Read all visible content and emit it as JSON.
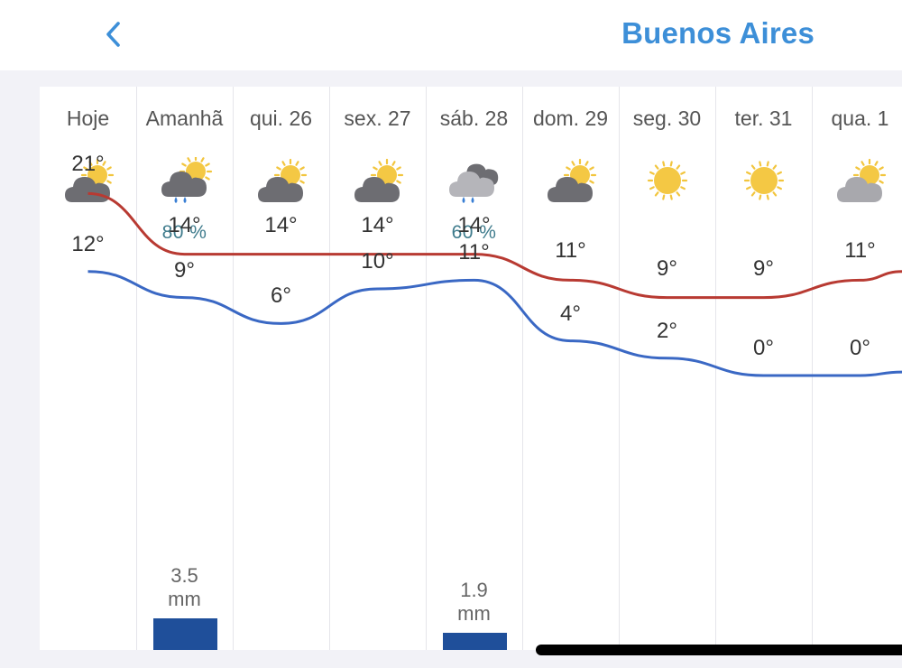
{
  "nav": {
    "back_icon": "chevron-left-icon",
    "title": "Buenos Aires"
  },
  "colors": {
    "accent": "#3d8fd8",
    "high_line": "#b83a32",
    "low_line": "#3a68c4",
    "rain_bar": "#1f4f9a",
    "precip_text": "#3e7b8c"
  },
  "days": [
    {
      "label": "Hoje",
      "icon": "partly-cloudy-icon",
      "precip_chance": "",
      "high": 21,
      "high_label": "21°",
      "low": 12,
      "low_label": "12°",
      "rain_value": "",
      "rain_unit": "",
      "rain_mm": 0
    },
    {
      "label": "Amanhã",
      "icon": "cloud-sun-rain-icon",
      "precip_chance": "80 %",
      "high": 14,
      "high_label": "14°",
      "low": 9,
      "low_label": "9°",
      "rain_value": "3.5",
      "rain_unit": "mm",
      "rain_mm": 3.5
    },
    {
      "label": "qui. 26",
      "icon": "partly-cloudy-icon",
      "precip_chance": "",
      "high": 14,
      "high_label": "14°",
      "low": 6,
      "low_label": "6°",
      "rain_value": "",
      "rain_unit": "",
      "rain_mm": 0
    },
    {
      "label": "sex. 27",
      "icon": "partly-cloudy-icon",
      "precip_chance": "",
      "high": 14,
      "high_label": "14°",
      "low": 10,
      "low_label": "10°",
      "rain_value": "",
      "rain_unit": "",
      "rain_mm": 0
    },
    {
      "label": "sáb. 28",
      "icon": "cloudy-rain-icon",
      "precip_chance": "60 %",
      "high": 14,
      "high_label": "14°",
      "low": 11,
      "low_label": "11°",
      "rain_value": "1.9",
      "rain_unit": "mm",
      "rain_mm": 1.9
    },
    {
      "label": "dom. 29",
      "icon": "partly-cloudy-icon",
      "precip_chance": "",
      "high": 11,
      "high_label": "11°",
      "low": 4,
      "low_label": "4°",
      "rain_value": "",
      "rain_unit": "",
      "rain_mm": 0
    },
    {
      "label": "seg. 30",
      "icon": "sun-icon",
      "precip_chance": "",
      "high": 9,
      "high_label": "9°",
      "low": 2,
      "low_label": "2°",
      "rain_value": "",
      "rain_unit": "",
      "rain_mm": 0
    },
    {
      "label": "ter. 31",
      "icon": "sun-icon",
      "precip_chance": "",
      "high": 9,
      "high_label": "9°",
      "low": 0,
      "low_label": "0°",
      "rain_value": "",
      "rain_unit": "",
      "rain_mm": 0
    },
    {
      "label": "qua. 1",
      "icon": "partly-cloudy-light-icon",
      "precip_chance": "",
      "high": 11,
      "high_label": "11°",
      "low": 0,
      "low_label": "0°",
      "rain_value": "",
      "rain_unit": "",
      "rain_mm": 0
    }
  ],
  "chart_data": {
    "type": "line",
    "x": [
      "Hoje",
      "Amanhã",
      "qui. 26",
      "sex. 27",
      "sáb. 28",
      "dom. 29",
      "seg. 30",
      "ter. 31",
      "qua. 1"
    ],
    "series": [
      {
        "values": [
          21,
          14,
          14,
          14,
          14,
          11,
          9,
          9,
          11
        ]
      },
      {
        "values": [
          12,
          9,
          6,
          10,
          11,
          4,
          2,
          0,
          0
        ]
      }
    ],
    "bars": [
      {
        "category": "Amanhã",
        "value": 3.5
      },
      {
        "category": "sáb. 28",
        "value": 1.9
      }
    ]
  }
}
